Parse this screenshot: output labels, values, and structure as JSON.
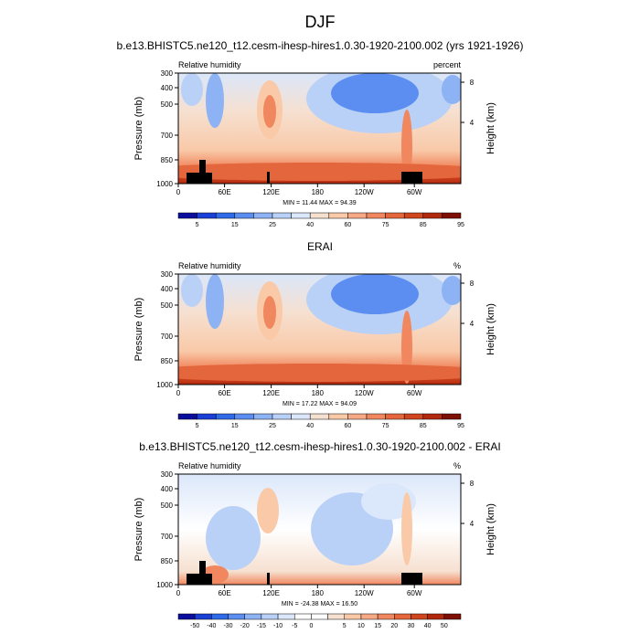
{
  "figure_title": "DJF",
  "palettes": {
    "rh": [
      "#0b0e9c",
      "#1a3fd6",
      "#2f6ae8",
      "#5b8ef0",
      "#8eb3f5",
      "#b9d0f7",
      "#dbe7fa",
      "#f6e0d0",
      "#f9c9a8",
      "#f6a985",
      "#f0875e",
      "#e4663c",
      "#d0461f",
      "#b2280d",
      "#7d0f05"
    ],
    "diff": [
      "#0b0e9c",
      "#1a3fd6",
      "#2f6ae8",
      "#5b8ef0",
      "#8eb3f5",
      "#b9d0f7",
      "#dbe7fa",
      "#ffffff",
      "#ffffff",
      "#f6e0d0",
      "#f9c9a8",
      "#f6a985",
      "#f0875e",
      "#e4663c",
      "#d0461f",
      "#b2280d",
      "#7d0f05"
    ]
  },
  "chart_data": [
    {
      "type": "heatmap",
      "title": "b.e13.BHISTC5.ne120_t12.cesm-ihesp-hires1.0.30-1920-2100.002 (yrs 1921-1926)",
      "left_label": "Relative humidity",
      "right_label": "percent",
      "ylabel": "Pressure (mb)",
      "y2label": "Height (km)",
      "yticks": [
        "300",
        "400",
        "500",
        "700",
        "850",
        "1000"
      ],
      "y2ticks": [
        "8",
        "4"
      ],
      "xticks": [
        "0",
        "60E",
        "120E",
        "180",
        "120W",
        "60W"
      ],
      "stats": "MIN = 11.44  MAX = 94.39",
      "colorbar_labels": [
        "5",
        "15",
        "25",
        "40",
        "60",
        "75",
        "85",
        "95"
      ],
      "colorbar_levels": 15,
      "topography": true
    },
    {
      "type": "heatmap",
      "title": "ERAI",
      "left_label": "Relative humidity",
      "right_label": "%",
      "ylabel": "Pressure (mb)",
      "y2label": "Height (km)",
      "yticks": [
        "300",
        "400",
        "500",
        "700",
        "850",
        "1000"
      ],
      "y2ticks": [
        "8",
        "4"
      ],
      "xticks": [
        "0",
        "60E",
        "120E",
        "180",
        "120W",
        "60W"
      ],
      "stats": "MIN = 17.22  MAX = 94.09",
      "colorbar_labels": [
        "5",
        "15",
        "25",
        "40",
        "60",
        "75",
        "85",
        "95"
      ],
      "colorbar_levels": 15,
      "topography": false
    },
    {
      "type": "heatmap",
      "title": "b.e13.BHISTC5.ne120_t12.cesm-ihesp-hires1.0.30-1920-2100.002 - ERAI",
      "left_label": "Relative humidity",
      "right_label": "%",
      "ylabel": "Pressure (mb)",
      "y2label": "Height (km)",
      "yticks": [
        "300",
        "400",
        "500",
        "700",
        "850",
        "1000"
      ],
      "y2ticks": [
        "8",
        "4"
      ],
      "xticks": [
        "0",
        "60E",
        "120E",
        "180",
        "120W",
        "60W"
      ],
      "stats": "MIN = -24.38  MAX = 16.50",
      "colorbar_labels": [
        "-50",
        "-40",
        "-30",
        "-20",
        "-15",
        "-10",
        "-5",
        "0",
        "5",
        "10",
        "15",
        "20",
        "30",
        "40",
        "50"
      ],
      "colorbar_levels": 17,
      "topography": true
    }
  ]
}
